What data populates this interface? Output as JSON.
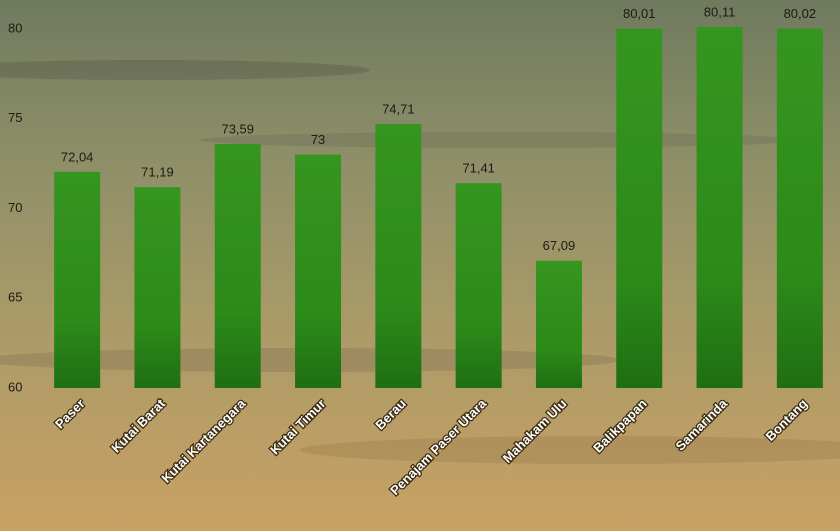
{
  "chart_data": {
    "type": "bar",
    "categories": [
      "Paser",
      "Kutai Barat",
      "Kutai Kartanegara",
      "Kutai Timur",
      "Berau",
      "Penajam Paser Utara",
      "Mahakam Ulu",
      "Balikpapan",
      "Samarinda",
      "Bontang"
    ],
    "values": [
      72.04,
      71.19,
      73.59,
      73,
      74.71,
      71.41,
      67.09,
      80.01,
      80.11,
      80.02
    ],
    "value_labels": [
      "72,04",
      "71,19",
      "73,59",
      "73",
      "74,71",
      "71,41",
      "67,09",
      "80,01",
      "80,11",
      "80,02"
    ],
    "color": "#2f8f1c",
    "ylim": [
      60,
      81.5
    ],
    "yticks": [
      60,
      65,
      70,
      75,
      80
    ]
  }
}
